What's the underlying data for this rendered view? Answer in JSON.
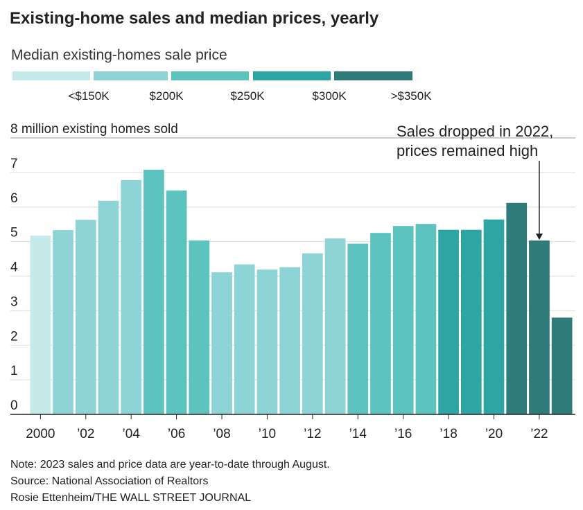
{
  "chart_data": {
    "type": "bar",
    "title": "Existing-home sales and median prices, yearly",
    "legend": {
      "title": "Median existing-homes sale price",
      "items": [
        {
          "label": "<$150K",
          "color": "#c6e9ea"
        },
        {
          "label": "$200K",
          "color": "#8ed4d7"
        },
        {
          "label": "$250K",
          "color": "#5cc3be"
        },
        {
          "label": "$300K",
          "color": "#2ea5a5"
        },
        {
          "label": ">$350K",
          "color": "#2e7b79"
        }
      ]
    },
    "categories": [
      "2000",
      null,
      "’02",
      null,
      "’04",
      null,
      "’06",
      null,
      "’08",
      null,
      "’10",
      null,
      "’12",
      null,
      "’14",
      null,
      "’16",
      null,
      "’18",
      null,
      "’20",
      null,
      "’22",
      null
    ],
    "values": [
      5.17,
      5.33,
      5.63,
      6.18,
      6.78,
      7.08,
      6.48,
      5.03,
      4.11,
      4.34,
      4.19,
      4.26,
      4.66,
      5.09,
      4.94,
      5.25,
      5.45,
      5.51,
      5.34,
      5.34,
      5.64,
      6.12,
      5.03,
      2.8
    ],
    "colors": [
      "#c6e9ea",
      "#8ed4d7",
      "#8ed4d7",
      "#8ed4d7",
      "#8ed4d7",
      "#5cc3be",
      "#5cc3be",
      "#5cc3be",
      "#8ed4d7",
      "#8ed4d7",
      "#8ed4d7",
      "#8ed4d7",
      "#8ed4d7",
      "#8ed4d7",
      "#5cc3be",
      "#5cc3be",
      "#5cc3be",
      "#5cc3be",
      "#2ea5a5",
      "#2ea5a5",
      "#2ea5a5",
      "#2e7b79",
      "#2e7b79",
      "#2e7b79"
    ],
    "ylim": [
      0,
      8
    ],
    "yticks": [
      0,
      1,
      2,
      3,
      4,
      5,
      6,
      7,
      {
        "value": 8,
        "label": "8 million existing homes sold"
      }
    ],
    "grid": true,
    "annotation": {
      "lines": [
        "Sales dropped in 2022,",
        "prices remained high"
      ],
      "category_index": 22
    },
    "notes": [
      "Note: 2023 sales and price data are year-to-date through August.",
      "Source: National Association of Realtors",
      "Rosie Ettenheim/THE WALL STREET JOURNAL"
    ]
  }
}
